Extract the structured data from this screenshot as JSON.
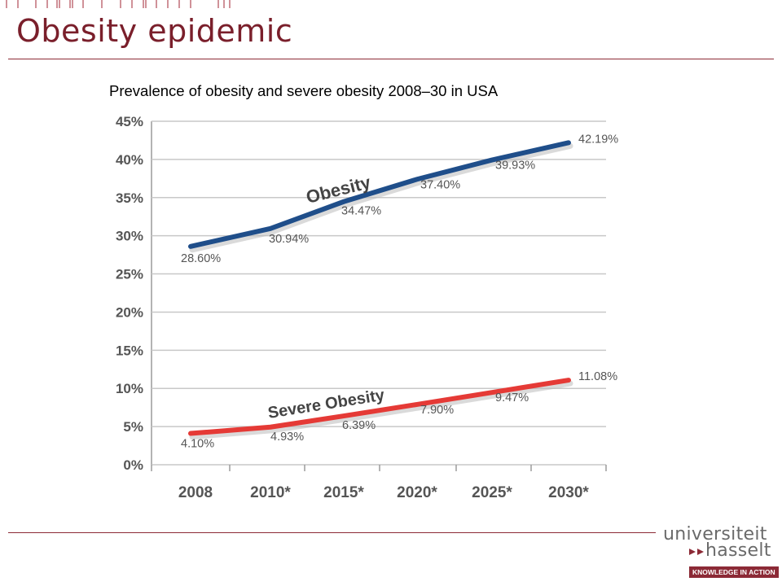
{
  "slide": {
    "title": "Obesity epidemic",
    "subtitle": "Prevalence of obesity and severe obesity 2008–30 in USA"
  },
  "colors": {
    "accent": "#8c2a36",
    "obesity_line": "#1f4e8a",
    "severe_line": "#e53a36",
    "grid": "#c8c8c8"
  },
  "chart_data": {
    "type": "line",
    "categories": [
      "2008",
      "2010*",
      "2015*",
      "2020*",
      "2025*",
      "2030*"
    ],
    "yticks": [
      "0%",
      "5%",
      "10%",
      "15%",
      "20%",
      "25%",
      "30%",
      "35%",
      "40%",
      "45%"
    ],
    "ylim": [
      0,
      45
    ],
    "grid": true,
    "series": [
      {
        "name": "Obesity",
        "values": [
          28.6,
          30.94,
          34.47,
          37.4,
          39.93,
          42.19
        ],
        "labels": [
          "28.60%",
          "30.94%",
          "34.47%",
          "37.40%",
          "39.93%",
          "42.19%"
        ]
      },
      {
        "name": "Severe Obesity",
        "values": [
          4.1,
          4.93,
          6.39,
          7.9,
          9.47,
          11.08
        ],
        "labels": [
          "4.10%",
          "4.93%",
          "6.39%",
          "7.90%",
          "9.47%",
          "11.08%"
        ]
      }
    ]
  },
  "logo": {
    "line1": "universiteit",
    "line2": "hasselt",
    "tagline": "KNOWLEDGE IN ACTION"
  }
}
